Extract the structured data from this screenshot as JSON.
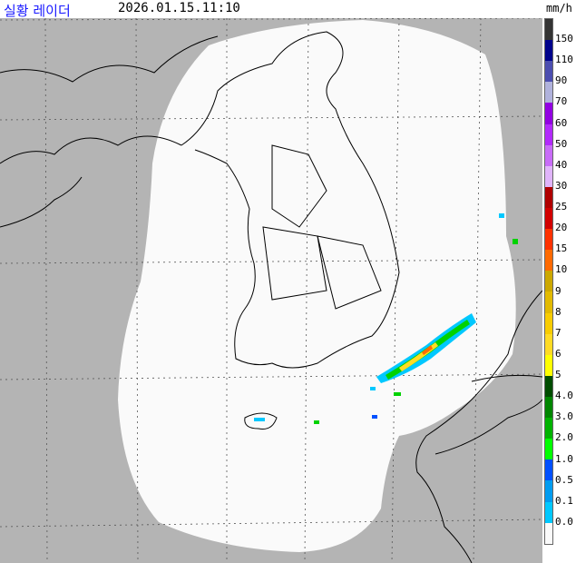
{
  "header": {
    "title": "실황 레이더",
    "timestamp": "2026.01.15.11:10"
  },
  "legend": {
    "unit": "mm/h",
    "labels": [
      "150",
      "110",
      "90",
      "70",
      "60",
      "50",
      "40",
      "30",
      "25",
      "20",
      "15",
      "10",
      "9",
      "8",
      "7",
      "6",
      "5",
      "4.0",
      "3.0",
      "2.0",
      "1.0",
      "0.5",
      "0.1",
      "0.0"
    ],
    "colors": [
      "#333333",
      "#00038c",
      "#4c4eb0",
      "#b0b2dc",
      "#9200e2",
      "#b22afc",
      "#c86cf8",
      "#e0b4fa",
      "#b00000",
      "#d20000",
      "#ff3200",
      "#ff6a00",
      "#cca800",
      "#e2ba00",
      "#f8cc00",
      "#ffdb24",
      "#ffff00",
      "#004d00",
      "#008600",
      "#00b300",
      "#00ff00",
      "#0050ff",
      "#009cf0",
      "#00c8ff",
      "#fafafa"
    ]
  },
  "map": {
    "background": "#b4b4b4",
    "coverage": "#fafafa",
    "coast": "#000000"
  }
}
